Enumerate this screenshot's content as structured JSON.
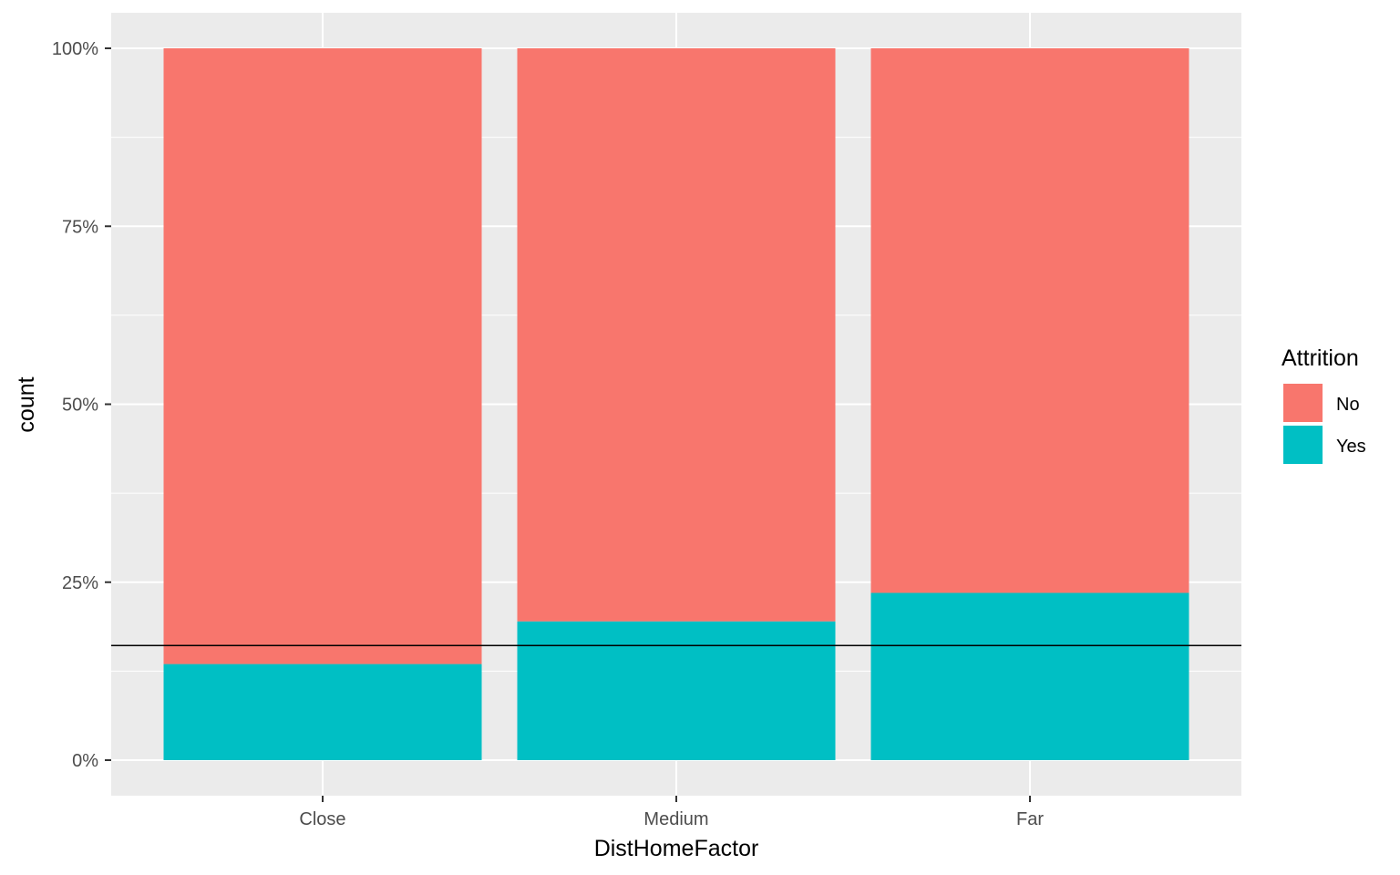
{
  "chart_data": {
    "type": "bar",
    "stacked": true,
    "position": "fill",
    "categories": [
      "Close",
      "Medium",
      "Far"
    ],
    "series": [
      {
        "name": "No",
        "values": [
          0.865,
          0.805,
          0.765
        ],
        "color": "#F8766D"
      },
      {
        "name": "Yes",
        "values": [
          0.135,
          0.195,
          0.235
        ],
        "color": "#00BFC4"
      }
    ],
    "stack_order_bottom_to_top": [
      "Yes",
      "No"
    ],
    "xlabel": "DistHomeFactor",
    "ylabel": "count",
    "ylim": [
      0,
      1
    ],
    "yticks": [
      0,
      0.25,
      0.5,
      0.75,
      1
    ],
    "ytick_labels": [
      "0%",
      "25%",
      "50%",
      "75%",
      "100%"
    ],
    "reference_line": {
      "y": 0.161,
      "color": "#000000"
    },
    "legend": {
      "title": "Attrition",
      "position": "right",
      "entries": [
        "No",
        "Yes"
      ]
    },
    "grid": true,
    "panel_background": "#EBEBEB",
    "grid_color": "#FFFFFF"
  }
}
